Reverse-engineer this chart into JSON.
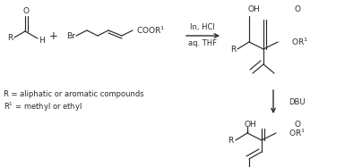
{
  "bg_color": "#ffffff",
  "line_color": "#2a2a2a",
  "figsize": [
    4.04,
    1.87
  ],
  "dpi": 100,
  "font_size": 6.5,
  "font_size_arrow": 6.0,
  "font_size_legend": 6.0,
  "legend1": "R = aliphatic or aromatic compounds",
  "legend2": "R$^{1}$ = methyl or ethyl",
  "arrow1_top": "In, HCl",
  "arrow1_bot": "aq. THF",
  "arrow2_label": "DBU"
}
